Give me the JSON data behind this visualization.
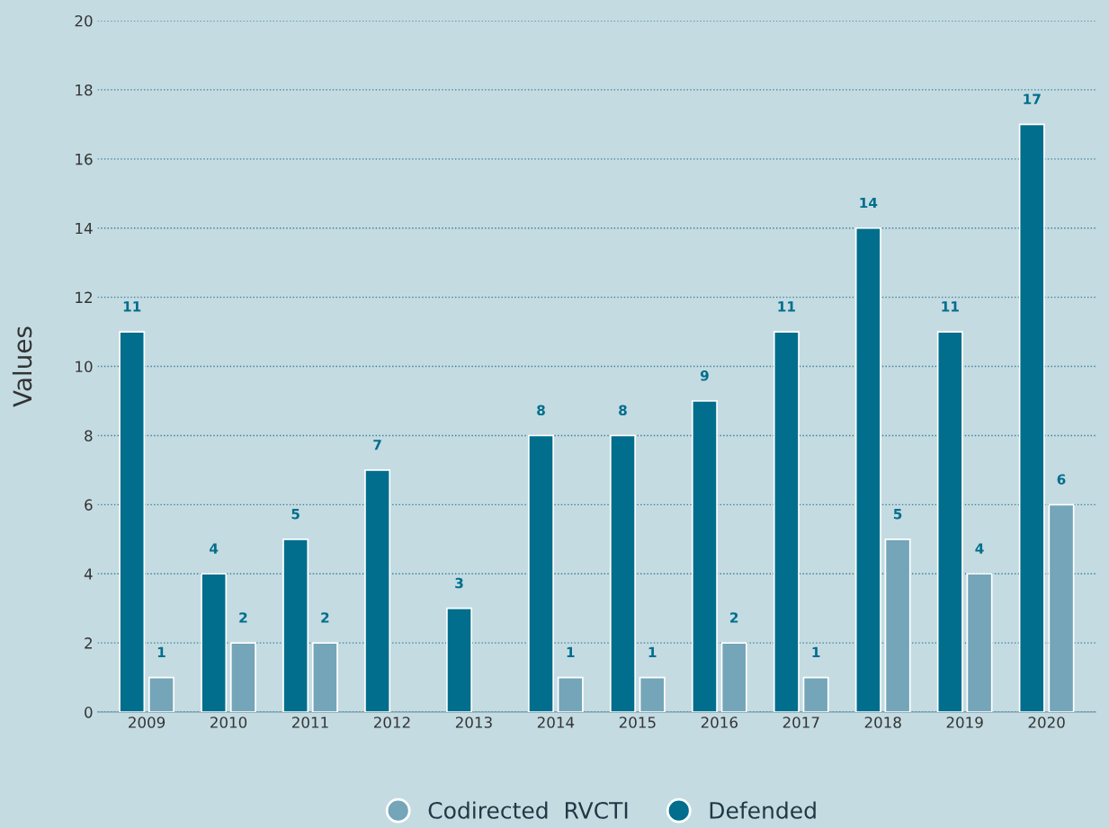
{
  "chart_data": {
    "type": "bar",
    "categories": [
      "2009",
      "2010",
      "2011",
      "2012",
      "2013",
      "2014",
      "2015",
      "2016",
      "2017",
      "2018",
      "2019",
      "2020"
    ],
    "series": [
      {
        "name": "Defended",
        "color": "#006e8c",
        "values": [
          11,
          4,
          5,
          7,
          3,
          8,
          8,
          9,
          11,
          14,
          11,
          17
        ]
      },
      {
        "name": "Codirected  RVCTI",
        "color": "#74a5b8",
        "values": [
          1,
          2,
          2,
          null,
          null,
          1,
          1,
          2,
          1,
          5,
          4,
          6
        ]
      }
    ],
    "ylabel": "Values",
    "ylim": [
      0,
      20
    ],
    "yticks": [
      0,
      2,
      4,
      6,
      8,
      10,
      12,
      14,
      16,
      18,
      20
    ],
    "grid": "y",
    "legend": "bottom",
    "data_labels": true
  }
}
